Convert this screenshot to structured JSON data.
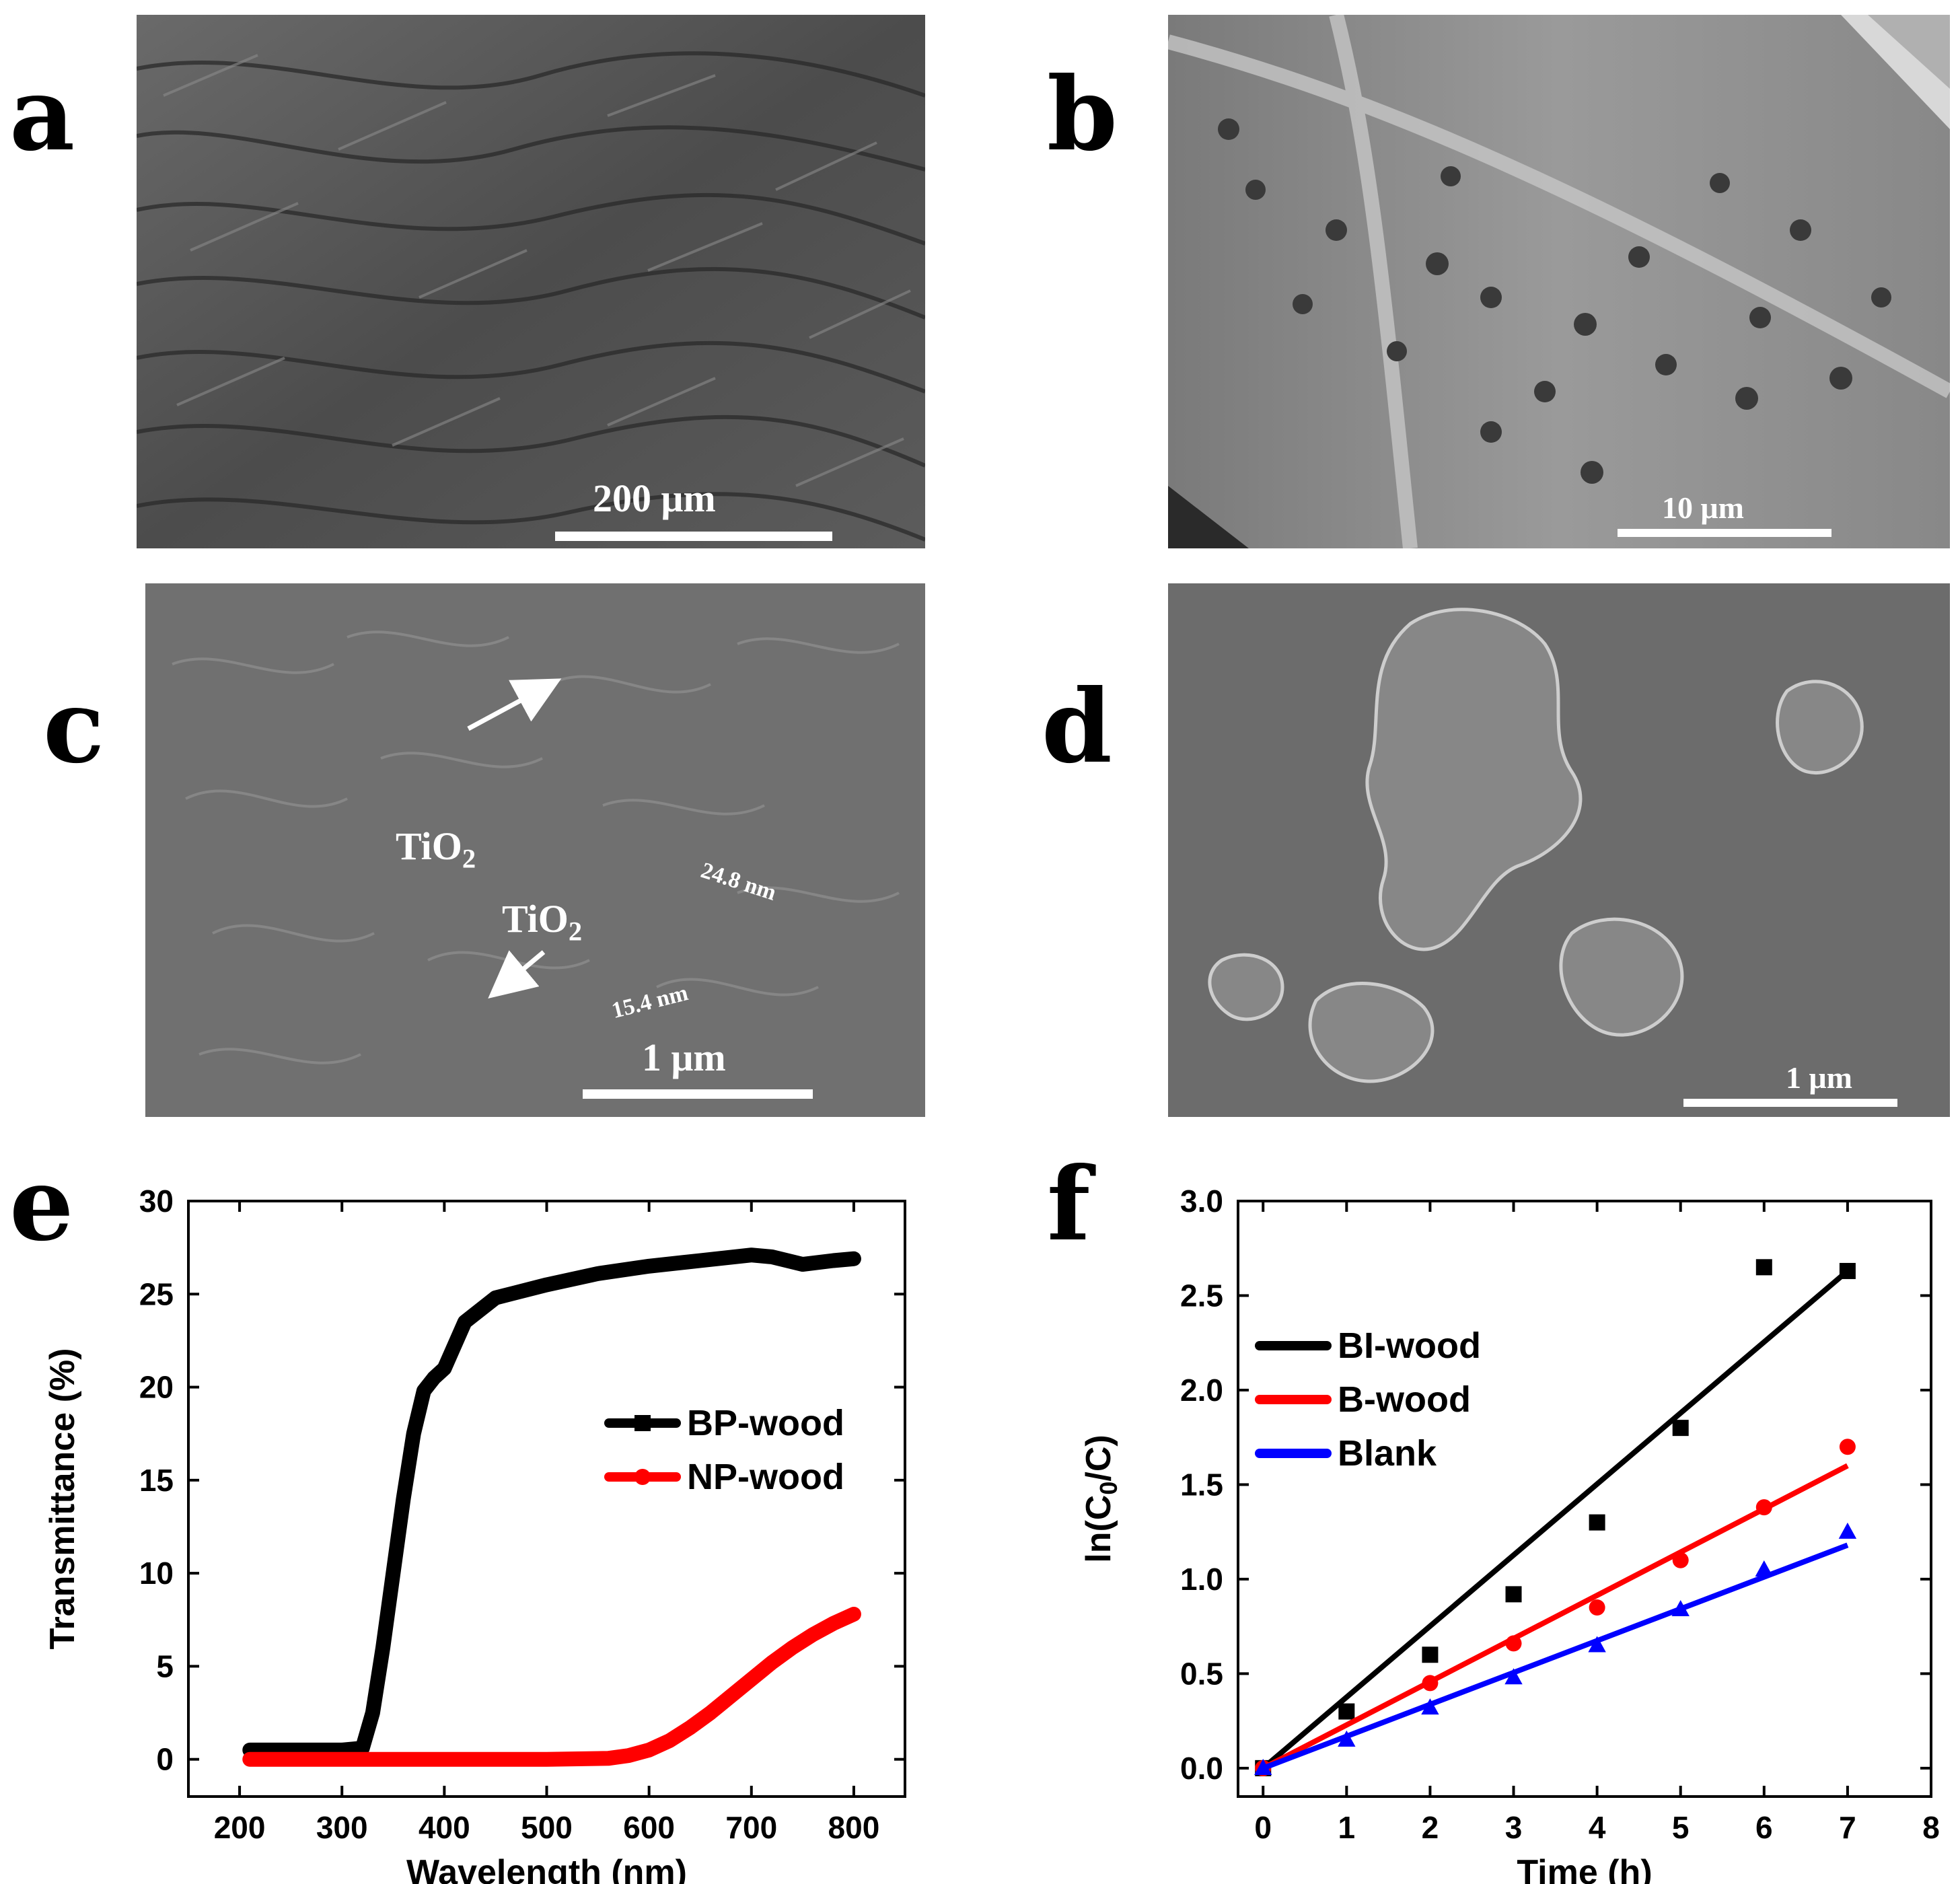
{
  "panels": {
    "a": {
      "letter": "a",
      "scalebar": "200 μm"
    },
    "b": {
      "letter": "b",
      "scalebar": "10 μm"
    },
    "c": {
      "letter": "c",
      "scalebar": "1 μm",
      "annotations": {
        "tio2_1": "TiO2",
        "tio2_2": "TiO2",
        "size_1": "24.8 nm",
        "size_2": "15.4 nm"
      }
    },
    "d": {
      "letter": "d",
      "scalebar": "1 μm"
    },
    "e": {
      "letter": "e"
    },
    "f": {
      "letter": "f"
    }
  },
  "chart_data": [
    {
      "panel": "e",
      "type": "line",
      "xlabel": "Wavelength (nm)",
      "ylabel": "Transmittance (%)",
      "xlim": [
        150,
        850
      ],
      "ylim": [
        -2,
        30
      ],
      "xticks": [
        200,
        300,
        400,
        500,
        600,
        700,
        800
      ],
      "yticks": [
        0,
        5,
        10,
        15,
        20,
        25,
        30
      ],
      "legend_position": "center-right",
      "series": [
        {
          "name": "BP-wood",
          "color": "#000000",
          "marker": "square",
          "x": [
            210,
            250,
            300,
            320,
            330,
            340,
            350,
            360,
            370,
            380,
            390,
            400,
            420,
            450,
            500,
            550,
            600,
            650,
            700,
            720,
            750,
            780,
            800
          ],
          "y": [
            0.5,
            0.5,
            0.5,
            0.6,
            2.5,
            6,
            10,
            14,
            17.5,
            19.8,
            20.5,
            21,
            23.5,
            24.8,
            25.5,
            26.1,
            26.5,
            26.8,
            27.1,
            27.0,
            26.6,
            26.8,
            26.9
          ]
        },
        {
          "name": "NP-wood",
          "color": "#ff0000",
          "marker": "circle",
          "x": [
            210,
            300,
            400,
            500,
            560,
            580,
            600,
            620,
            640,
            660,
            680,
            700,
            720,
            740,
            760,
            780,
            800
          ],
          "y": [
            0,
            0,
            0,
            0,
            0.05,
            0.2,
            0.5,
            1.0,
            1.7,
            2.5,
            3.4,
            4.3,
            5.2,
            6.0,
            6.7,
            7.3,
            7.8
          ]
        }
      ]
    },
    {
      "panel": "f",
      "type": "scatter",
      "xlabel": "Time (h)",
      "ylabel": "ln(C0/C)",
      "xlim": [
        -0.3,
        8
      ],
      "ylim": [
        -0.15,
        3.0
      ],
      "xticks": [
        0,
        1,
        2,
        3,
        4,
        5,
        6,
        7,
        8
      ],
      "yticks": [
        0.0,
        0.5,
        1.0,
        1.5,
        2.0,
        2.5,
        3.0
      ],
      "legend_position": "top-left",
      "series": [
        {
          "name": "BI-wood",
          "color": "#000000",
          "marker": "square",
          "x": [
            0,
            1,
            2,
            3,
            4,
            5,
            6,
            7
          ],
          "y": [
            0,
            0.3,
            0.6,
            0.92,
            1.3,
            1.8,
            2.65,
            2.63
          ],
          "fit": [
            [
              0,
              0
            ],
            [
              7,
              2.63
            ]
          ]
        },
        {
          "name": "B-wood",
          "color": "#ff0000",
          "marker": "circle",
          "x": [
            0,
            2,
            3,
            4,
            5,
            6,
            7
          ],
          "y": [
            0,
            0.45,
            0.66,
            0.85,
            1.1,
            1.38,
            1.7
          ],
          "fit": [
            [
              0,
              0
            ],
            [
              7,
              1.6
            ]
          ]
        },
        {
          "name": "Blank",
          "color": "#0000ff",
          "marker": "triangle",
          "x": [
            0,
            1,
            2,
            3,
            4,
            5,
            6,
            7
          ],
          "y": [
            0,
            0.15,
            0.32,
            0.48,
            0.65,
            0.84,
            1.05,
            1.25
          ],
          "fit": [
            [
              0,
              0
            ],
            [
              7,
              1.18
            ]
          ]
        }
      ]
    }
  ]
}
